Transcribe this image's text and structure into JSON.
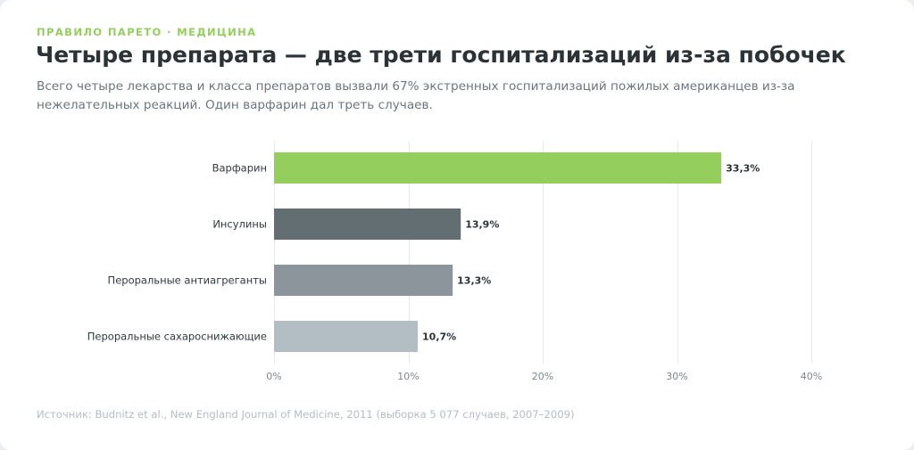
{
  "header": {
    "eyebrow": "ПРАВИЛО ПАРЕТО · МЕДИЦИНА",
    "title": "Четыре препарата — две трети госпитализаций из-за побочек",
    "subtitle": "Всего четыре лекарства и класса препаратов вызвали 67% экстренных госпитализаций пожилых американцев из-за нежелательных реакций. Один варфарин дал треть случаев."
  },
  "footer": {
    "source": "Источник: Budnitz et al., New England Journal of Medicine, 2011 (выборка 5 077 случаев, 2007–2009)"
  },
  "chart_data": {
    "type": "bar",
    "orientation": "horizontal",
    "categories": [
      "Варфарин",
      "Инсулины",
      "Пероральные антиагреганты",
      "Пероральные сахароснижающие"
    ],
    "values": [
      33.3,
      13.9,
      13.3,
      10.7
    ],
    "value_labels": [
      "33,3%",
      "13,9%",
      "13,3%",
      "10,7%"
    ],
    "colors": [
      "#94cf5d",
      "#636e72",
      "#8c959c",
      "#b3bec4"
    ],
    "xlim": [
      0,
      40
    ],
    "xticks": [
      0,
      10,
      20,
      30,
      40
    ],
    "xtick_labels": [
      "0%",
      "10%",
      "20%",
      "30%",
      "40%"
    ],
    "grid": true,
    "title": "",
    "xlabel": "",
    "ylabel": ""
  }
}
